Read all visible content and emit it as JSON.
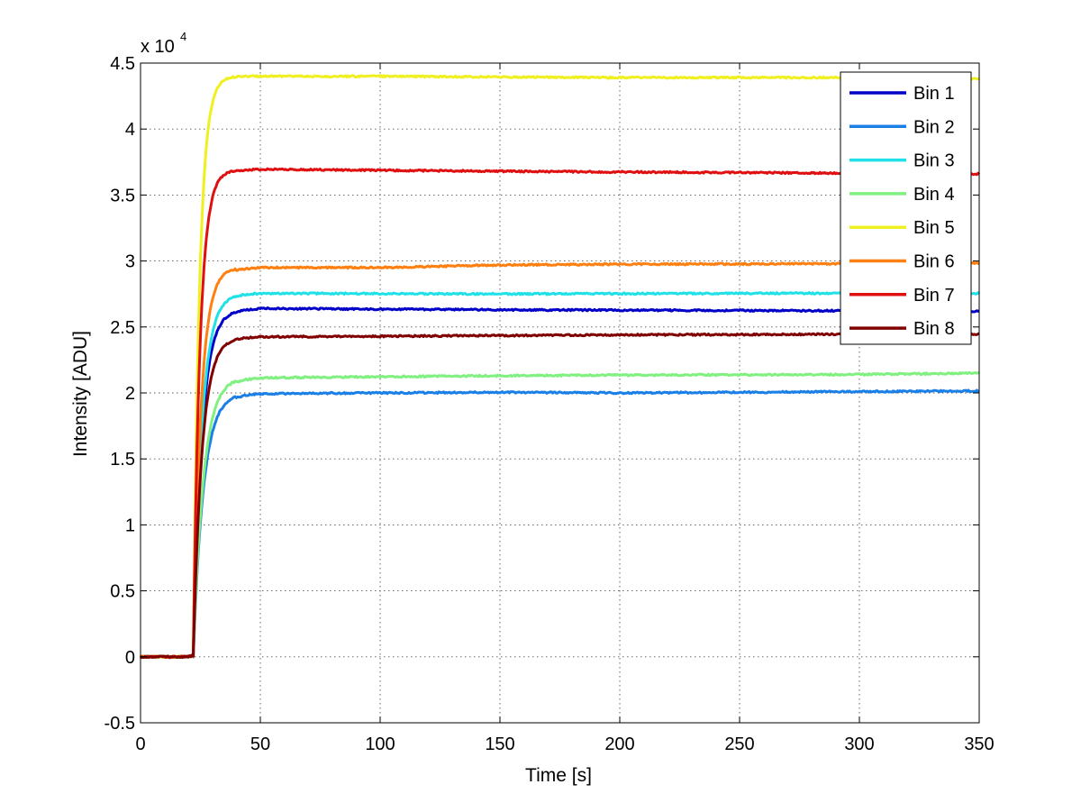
{
  "chart_data": {
    "type": "line",
    "title": "",
    "xlabel": "Time [s]",
    "ylabel": "Intensity [ADU]",
    "y_exponent_label": {
      "base": "x 10",
      "exponent": "4"
    },
    "xlim": [
      0,
      350
    ],
    "ylim": [
      -5000,
      45000
    ],
    "x_ticks": [
      0,
      50,
      100,
      150,
      200,
      250,
      300,
      350
    ],
    "x_tick_labels": [
      "0",
      "50",
      "100",
      "150",
      "200",
      "250",
      "300",
      "350"
    ],
    "y_ticks": [
      -5000,
      0,
      5000,
      10000,
      15000,
      20000,
      25000,
      30000,
      35000,
      40000,
      45000
    ],
    "y_tick_labels": [
      "-0.5",
      "0",
      "0.5",
      "1",
      "1.5",
      "2",
      "2.5",
      "3",
      "3.5",
      "4",
      "4.5"
    ],
    "grid": true,
    "legend_position": "top-right",
    "rise_model": {
      "onset_s": 22,
      "baseline": 0
    },
    "series": [
      {
        "name": "Bin 1",
        "color": "#0000c8",
        "plateau": 26300,
        "tau": 3.6,
        "drift": [
          [
            0,
            0
          ],
          [
            40,
            26300
          ],
          [
            50,
            26400
          ],
          [
            150,
            26300
          ],
          [
            250,
            26250
          ],
          [
            350,
            26200
          ]
        ]
      },
      {
        "name": "Bin 2",
        "color": "#1a7fe6",
        "plateau": 20000,
        "tau": 4.2,
        "drift": [
          [
            0,
            0
          ],
          [
            40,
            19900
          ],
          [
            50,
            19950
          ],
          [
            150,
            20050
          ],
          [
            200,
            20000
          ],
          [
            300,
            20100
          ],
          [
            350,
            20150
          ]
        ]
      },
      {
        "name": "Bin 3",
        "color": "#20e0e8",
        "plateau": 27500,
        "tau": 3.6,
        "drift": [
          [
            0,
            0
          ],
          [
            40,
            27500
          ],
          [
            50,
            27550
          ],
          [
            150,
            27500
          ],
          [
            250,
            27550
          ],
          [
            350,
            27550
          ]
        ]
      },
      {
        "name": "Bin 4",
        "color": "#80f080",
        "plateau": 21200,
        "tau": 4.2,
        "drift": [
          [
            0,
            0
          ],
          [
            40,
            21100
          ],
          [
            50,
            21150
          ],
          [
            150,
            21300
          ],
          [
            200,
            21350
          ],
          [
            300,
            21400
          ],
          [
            350,
            21500
          ]
        ]
      },
      {
        "name": "Bin 5",
        "color": "#f0f020",
        "plateau": 44000,
        "tau": 2.6,
        "drift": [
          [
            0,
            0
          ],
          [
            40,
            44000
          ],
          [
            100,
            44000
          ],
          [
            200,
            43900
          ],
          [
            300,
            43900
          ],
          [
            350,
            43800
          ]
        ]
      },
      {
        "name": "Bin 6",
        "color": "#ff8010",
        "plateau": 29500,
        "tau": 3.2,
        "drift": [
          [
            0,
            0
          ],
          [
            40,
            29400
          ],
          [
            50,
            29500
          ],
          [
            100,
            29500
          ],
          [
            150,
            29700
          ],
          [
            200,
            29750
          ],
          [
            300,
            29800
          ],
          [
            350,
            29850
          ]
        ]
      },
      {
        "name": "Bin 7",
        "color": "#e01010",
        "plateau": 36900,
        "tau": 2.8,
        "drift": [
          [
            0,
            0
          ],
          [
            40,
            36900
          ],
          [
            50,
            36950
          ],
          [
            150,
            36800
          ],
          [
            250,
            36700
          ],
          [
            350,
            36600
          ]
        ]
      },
      {
        "name": "Bin 8",
        "color": "#800000",
        "plateau": 24200,
        "tau": 3.6,
        "drift": [
          [
            0,
            0
          ],
          [
            40,
            24200
          ],
          [
            50,
            24250
          ],
          [
            150,
            24350
          ],
          [
            200,
            24400
          ],
          [
            300,
            24450
          ],
          [
            350,
            24450
          ]
        ]
      }
    ]
  }
}
